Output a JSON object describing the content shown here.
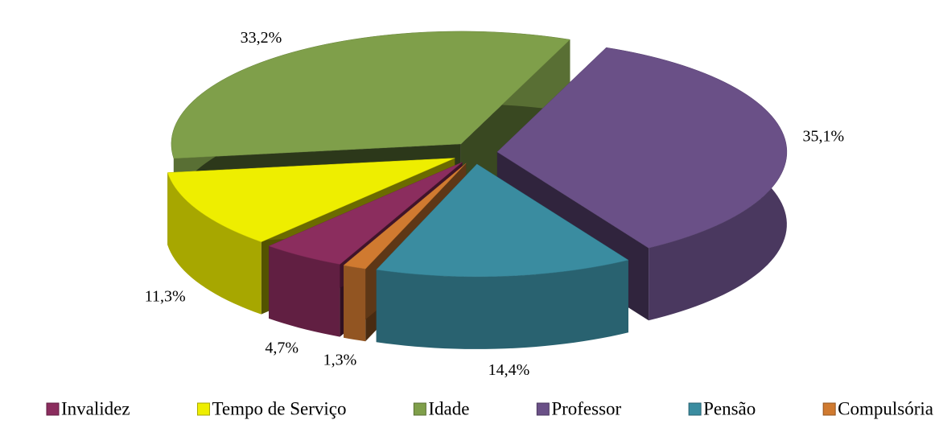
{
  "chart_data": {
    "type": "pie",
    "categories": [
      "Invalidez",
      "Tempo de Serviço",
      "Idade",
      "Professor",
      "Pensão",
      "Compulsória"
    ],
    "values": [
      4.7,
      11.3,
      33.2,
      35.1,
      14.4,
      1.3
    ],
    "value_labels": [
      "4,7%",
      "11,3%",
      "33,2%",
      "35,1%",
      "14,4%",
      "1,3%"
    ],
    "colors": [
      "#8b2d5e",
      "#eeee00",
      "#7f9f4a",
      "#6a5087",
      "#3a8ca0",
      "#d07a30"
    ],
    "legend": "bottom"
  }
}
